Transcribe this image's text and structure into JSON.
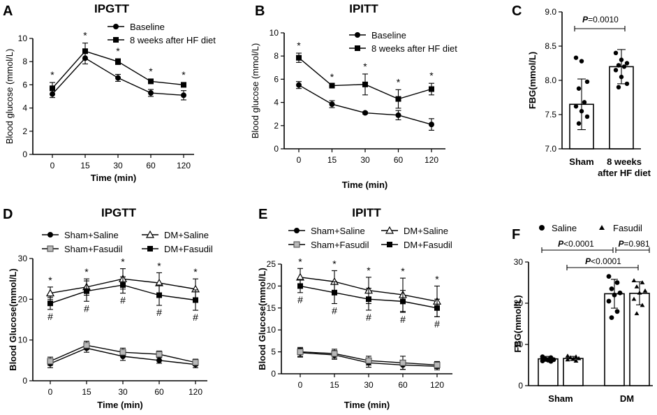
{
  "chart_data": [
    {
      "panel": "A",
      "type": "line",
      "title": "IPGTT",
      "xlabel": "Time (min)",
      "ylabel": "Blood glucose (mmol/L)",
      "categories": [
        "0",
        "15",
        "30",
        "60",
        "120"
      ],
      "ylim": [
        0,
        10
      ],
      "yticks": [
        0,
        2,
        4,
        6,
        8,
        10
      ],
      "legend_position": "top-right",
      "series": [
        {
          "name": "Baseline",
          "marker": "circle",
          "values": [
            5.2,
            8.3,
            6.6,
            5.3,
            5.1
          ],
          "errors": [
            0.3,
            0.5,
            0.3,
            0.3,
            0.4
          ]
        },
        {
          "name": "8 weeks after HF diet",
          "marker": "square",
          "values": [
            5.7,
            8.9,
            8.0,
            6.3,
            6.0
          ],
          "errors": [
            0.5,
            0.7,
            0.25,
            0.2,
            0.2
          ]
        }
      ],
      "annotations": [
        "*",
        "*",
        "*",
        "*",
        "*"
      ]
    },
    {
      "panel": "B",
      "type": "line",
      "title": "IPITT",
      "xlabel": "Time (min)",
      "ylabel": "Blood glucose (mmol/L)",
      "categories": [
        "0",
        "15",
        "30",
        "60",
        "120"
      ],
      "ylim": [
        0,
        10
      ],
      "yticks": [
        0,
        2,
        4,
        6,
        8,
        10
      ],
      "legend_position": "top-right",
      "series": [
        {
          "name": "Baseline",
          "marker": "circle",
          "values": [
            5.5,
            3.85,
            3.1,
            2.9,
            2.1
          ],
          "errors": [
            0.3,
            0.3,
            0.1,
            0.4,
            0.5
          ]
        },
        {
          "name": "8 weeks after HF diet",
          "marker": "square",
          "values": [
            7.85,
            5.45,
            5.55,
            4.3,
            5.15
          ],
          "errors": [
            0.4,
            0.1,
            0.9,
            0.8,
            0.5
          ]
        }
      ],
      "annotations": [
        "*",
        "*",
        "*",
        "*",
        "*"
      ]
    },
    {
      "panel": "C",
      "type": "bar",
      "ylabel": "FBG(mmol/L)",
      "categories": [
        "Sham",
        "8 weeks\nafter HF diet"
      ],
      "values": [
        7.65,
        8.2
      ],
      "errors": [
        0.37,
        0.25
      ],
      "ylim": [
        7.0,
        9.0
      ],
      "yticks": [
        "7.0",
        "7.5",
        "8.0",
        "8.5",
        "9.0"
      ],
      "points": [
        [
          8.33,
          8.28,
          7.98,
          7.88,
          7.68,
          7.62,
          7.55,
          7.47,
          7.37
        ],
        [
          8.4,
          8.3,
          8.25,
          8.22,
          8.2,
          8.15,
          8.05,
          7.95,
          7.9
        ]
      ],
      "significance": {
        "p_label": "P",
        "p_value": "=0.0010"
      }
    },
    {
      "panel": "D",
      "type": "line",
      "title": "IPGTT",
      "xlabel": "Time (min)",
      "ylabel": "Blood Glucose(mmol/L)",
      "categories": [
        "0",
        "15",
        "30",
        "60",
        "120"
      ],
      "ylim": [
        0,
        30
      ],
      "yticks": [
        0,
        10,
        20,
        30
      ],
      "legend_position": "top",
      "series": [
        {
          "name": "Sham+Saline",
          "marker": "circle",
          "values": [
            4.2,
            8.0,
            6.0,
            5.0,
            4.0
          ],
          "errors": [
            1.0,
            1.0,
            1.0,
            0.7,
            0.8
          ]
        },
        {
          "name": "Sham+Fasudil",
          "marker": "square-gray",
          "values": [
            4.8,
            8.7,
            7.0,
            6.5,
            4.5
          ],
          "errors": [
            1.0,
            1.0,
            1.0,
            0.8,
            0.8
          ]
        },
        {
          "name": "DM+Saline",
          "marker": "triangle-open",
          "values": [
            21.5,
            23.0,
            25.0,
            24.0,
            22.5
          ],
          "errors": [
            1.5,
            2.0,
            2.5,
            2.5,
            2.5
          ]
        },
        {
          "name": "DM+Fasudil",
          "marker": "square",
          "values": [
            19.0,
            22.0,
            23.5,
            21.0,
            19.8
          ],
          "errors": [
            1.5,
            2.5,
            2.0,
            2.5,
            2.5
          ]
        }
      ],
      "annotations_top": [
        "*",
        "*",
        "*",
        "*",
        "*"
      ],
      "annotations_bottom": [
        "#",
        "#",
        "#",
        "#",
        "#"
      ]
    },
    {
      "panel": "E",
      "type": "line",
      "title": "IPITT",
      "xlabel": "Time (min)",
      "ylabel": "Blood Glucose(mmol/L)",
      "categories": [
        "0",
        "15",
        "30",
        "60",
        "120"
      ],
      "ylim": [
        0,
        25
      ],
      "yticks": [
        0,
        5,
        10,
        15,
        20,
        25
      ],
      "legend_position": "top",
      "series": [
        {
          "name": "Sham+Saline",
          "marker": "circle",
          "values": [
            4.8,
            4.3,
            2.5,
            2.0,
            1.7
          ],
          "errors": [
            1.0,
            1.0,
            1.0,
            1.0,
            0.8
          ]
        },
        {
          "name": "Sham+Fasudil",
          "marker": "square-gray",
          "values": [
            5.0,
            4.6,
            3.0,
            2.5,
            2.0
          ],
          "errors": [
            1.0,
            1.0,
            1.0,
            1.5,
            0.8
          ]
        },
        {
          "name": "DM+Saline",
          "marker": "triangle-open",
          "values": [
            22.0,
            21.0,
            19.0,
            18.0,
            16.5
          ],
          "errors": [
            2.0,
            2.5,
            3.0,
            3.8,
            3.5
          ]
        },
        {
          "name": "DM+Fasudil",
          "marker": "square",
          "values": [
            20.0,
            18.5,
            17.0,
            16.5,
            15.0
          ],
          "errors": [
            1.5,
            2.5,
            2.5,
            2.5,
            2.0
          ]
        }
      ],
      "annotations_top": [
        "*",
        "*",
        "*",
        "*",
        "*"
      ],
      "annotations_bottom": [
        "#",
        "#",
        "#",
        "#",
        "#"
      ]
    },
    {
      "panel": "F",
      "type": "bar",
      "ylabel": "FBG(mmol/L)",
      "groups": [
        "Sham",
        "DM"
      ],
      "legend_position": "top",
      "series": [
        {
          "name": "Saline",
          "marker": "circle",
          "values": [
            6.5,
            22.3
          ],
          "errors": [
            0.6,
            3.5
          ],
          "points": [
            [
              7.0,
              6.8,
              6.5,
              6.3,
              6.2,
              6.0,
              5.9
            ],
            [
              26.5,
              25.0,
              23.5,
              22.5,
              22.0,
              20.5,
              18.0,
              16.5
            ]
          ]
        },
        {
          "name": "Fasudil",
          "marker": "triangle",
          "values": [
            6.6,
            22.4
          ],
          "errors": [
            0.5,
            2.8
          ],
          "points": [
            [
              7.2,
              7.0,
              6.8,
              6.6,
              6.5,
              6.3,
              6.0
            ],
            [
              25.5,
              25.0,
              24.0,
              23.0,
              22.5,
              21.0,
              19.5,
              17.5
            ]
          ]
        }
      ],
      "ylim": [
        0,
        30
      ],
      "yticks": [
        0,
        10,
        20,
        30
      ],
      "significance": [
        {
          "p_label": "P",
          "p_value": "<0.0001"
        },
        {
          "p_label": "P",
          "p_value": "=0.981"
        },
        {
          "p_label": "P",
          "p_value": "<0.0001"
        }
      ]
    }
  ]
}
